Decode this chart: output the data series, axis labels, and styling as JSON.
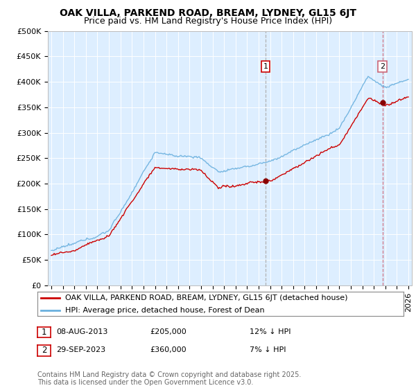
{
  "title": "OAK VILLA, PARKEND ROAD, BREAM, LYDNEY, GL15 6JT",
  "subtitle": "Price paid vs. HM Land Registry's House Price Index (HPI)",
  "ylim": [
    0,
    500000
  ],
  "yticks": [
    0,
    50000,
    100000,
    150000,
    200000,
    250000,
    300000,
    350000,
    400000,
    450000,
    500000
  ],
  "ytick_labels": [
    "£0",
    "£50K",
    "£100K",
    "£150K",
    "£200K",
    "£250K",
    "£300K",
    "£350K",
    "£400K",
    "£450K",
    "£500K"
  ],
  "hpi_color": "#6ab0de",
  "price_color": "#cc0000",
  "vline1_color": "#aaaaaa",
  "vline2_color": "#cc6677",
  "plot_bg_color": "#ddeeff",
  "grid_color": "#ffffff",
  "legend_label_price": "OAK VILLA, PARKEND ROAD, BREAM, LYDNEY, GL15 6JT (detached house)",
  "legend_label_hpi": "HPI: Average price, detached house, Forest of Dean",
  "transaction1_date": "08-AUG-2013",
  "transaction1_price": "£205,000",
  "transaction1_hpi": "12% ↓ HPI",
  "transaction1_year": 2013.6,
  "transaction1_price_val": 205000,
  "transaction2_date": "29-SEP-2023",
  "transaction2_price": "£360,000",
  "transaction2_hpi": "7% ↓ HPI",
  "transaction2_year": 2023.75,
  "transaction2_price_val": 360000,
  "footnote": "Contains HM Land Registry data © Crown copyright and database right 2025.\nThis data is licensed under the Open Government Licence v3.0.",
  "title_fontsize": 10,
  "subtitle_fontsize": 9,
  "tick_fontsize": 8,
  "legend_fontsize": 8,
  "footnote_fontsize": 7
}
